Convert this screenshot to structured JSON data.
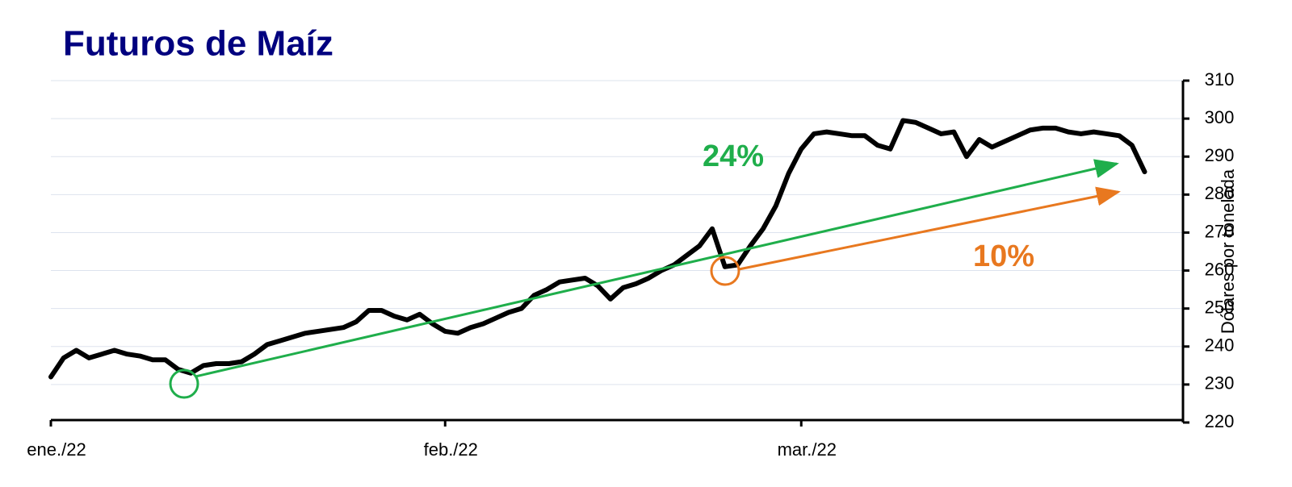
{
  "chart_data": {
    "type": "line",
    "title": "Futuros de Maíz",
    "y_label": "Dólares por tonelada",
    "categories": [
      "ene./22",
      null,
      null,
      null,
      null,
      null,
      null,
      null,
      null,
      null,
      null,
      null,
      null,
      null,
      null,
      null,
      null,
      null,
      null,
      null,
      null,
      null,
      null,
      null,
      null,
      null,
      null,
      null,
      null,
      null,
      null,
      "feb./22",
      null,
      null,
      null,
      null,
      null,
      null,
      null,
      null,
      null,
      null,
      null,
      null,
      null,
      null,
      null,
      null,
      null,
      null,
      null,
      null,
      null,
      null,
      null,
      null,
      null,
      null,
      null,
      "mar./22",
      null,
      null,
      null,
      null,
      null,
      null,
      null,
      null,
      null,
      null,
      null,
      null,
      null,
      null,
      null,
      null,
      null,
      null,
      null,
      null,
      null,
      null,
      null,
      null,
      null,
      null,
      null
    ],
    "values": [
      232,
      237,
      239,
      237,
      238,
      239,
      238,
      237.5,
      236.5,
      236.5,
      234,
      233,
      235,
      235.5,
      235.5,
      236,
      238,
      240.5,
      241.5,
      242.5,
      243.5,
      244,
      244.5,
      245,
      246.5,
      249.5,
      249.5,
      248,
      247,
      248.5,
      246,
      244,
      243.5,
      245,
      246,
      247.5,
      249,
      250,
      253.5,
      255,
      257,
      257.5,
      258,
      256,
      252.5,
      255.5,
      256.5,
      258,
      260,
      261.5,
      264,
      266.5,
      271,
      261,
      261.5,
      266.5,
      271,
      277,
      285.5,
      292,
      296,
      296.5,
      296,
      295.5,
      295.5,
      293,
      292,
      299.5,
      299,
      297.5,
      296,
      296.5,
      290,
      294.5,
      292.5,
      294,
      295.5,
      297,
      297.5,
      297.5,
      296.5,
      296,
      296.5,
      296,
      295.5,
      293,
      286
    ],
    "color": "#000000",
    "ylim": [
      220,
      310
    ],
    "yticks": [
      220,
      230,
      240,
      250,
      260,
      270,
      280,
      290,
      300,
      310
    ],
    "grid": true,
    "annotations": [
      {
        "text": "24%",
        "color": "#1fae4b"
      },
      {
        "text": "10%",
        "color": "#e8781f"
      }
    ]
  }
}
